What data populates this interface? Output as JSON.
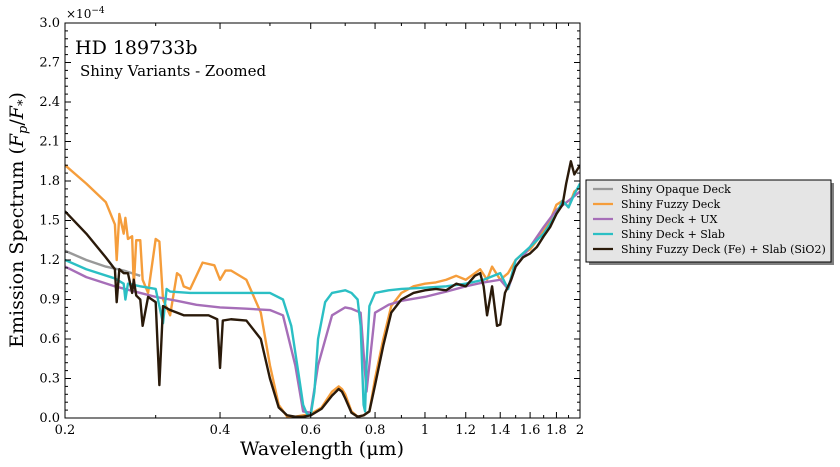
{
  "chart_data": {
    "type": "line",
    "title": "HD 189733b",
    "subtitle": "Shiny Variants - Zoomed",
    "xlabel": "Wavelength (μm)",
    "ylabel": "Emission Spectrum (F_p/F_*)",
    "ylabel_parts": {
      "main": "Emission Spectrum (",
      "F1": "F",
      "s1": "p",
      "slash": "/",
      "F2": "F",
      "s2": "*",
      "close": ")"
    },
    "y_multiplier": "×10",
    "y_multiplier_exp": "−4",
    "x_scale": "log",
    "xlim": [
      0.2,
      2.0
    ],
    "ylim": [
      0.0,
      3.0
    ],
    "x_ticks": [
      0.2,
      0.4,
      0.6,
      0.8,
      1,
      1.2,
      1.4,
      1.6,
      1.8,
      2
    ],
    "x_tick_labels": [
      "0.2",
      "0.4",
      "0.6",
      "0.8",
      "1",
      "1.2",
      "1.4",
      "1.6",
      "1.8",
      "2"
    ],
    "y_ticks": [
      0.0,
      0.3,
      0.6,
      0.9,
      1.2,
      1.5,
      1.8,
      2.1,
      2.4,
      2.7,
      3.0
    ],
    "y_tick_labels": [
      "0.0",
      "0.3",
      "0.6",
      "0.9",
      "1.2",
      "1.5",
      "1.8",
      "2.1",
      "2.4",
      "2.7",
      "3.0"
    ],
    "legend_position": "outside-right",
    "grid": false,
    "series": [
      {
        "name": "Shiny Opaque Deck",
        "color": "#999999",
        "x": [
          0.2,
          0.22,
          0.24,
          0.26,
          0.28
        ],
        "y": [
          1.27,
          1.2,
          1.15,
          1.12,
          1.08
        ]
      },
      {
        "name": "Shiny Fuzzy Deck",
        "color": "#f59d3b",
        "x": [
          0.2,
          0.22,
          0.24,
          0.25,
          0.252,
          0.255,
          0.26,
          0.262,
          0.265,
          0.27,
          0.272,
          0.275,
          0.28,
          0.283,
          0.29,
          0.3,
          0.305,
          0.31,
          0.32,
          0.33,
          0.335,
          0.34,
          0.35,
          0.37,
          0.39,
          0.4,
          0.41,
          0.42,
          0.45,
          0.48,
          0.5,
          0.52,
          0.54,
          0.56,
          0.58,
          0.6,
          0.63,
          0.66,
          0.68,
          0.69,
          0.7,
          0.72,
          0.74,
          0.76,
          0.78,
          0.8,
          0.83,
          0.86,
          0.9,
          0.95,
          1.0,
          1.05,
          1.1,
          1.15,
          1.2,
          1.25,
          1.28,
          1.32,
          1.35,
          1.4,
          1.45,
          1.5,
          1.55,
          1.6,
          1.65,
          1.7,
          1.75,
          1.8,
          1.85,
          1.9,
          1.95,
          2.0
        ],
        "y": [
          1.92,
          1.78,
          1.64,
          1.47,
          1.2,
          1.55,
          1.4,
          1.52,
          1.36,
          1.38,
          1.0,
          1.35,
          1.35,
          1.05,
          0.95,
          1.36,
          1.34,
          0.9,
          0.78,
          1.1,
          1.08,
          1.0,
          0.98,
          1.18,
          1.16,
          1.05,
          1.12,
          1.12,
          1.05,
          0.8,
          0.4,
          0.1,
          0.01,
          0.01,
          0.02,
          0.03,
          0.08,
          0.2,
          0.24,
          0.22,
          0.18,
          0.05,
          0.01,
          0.02,
          0.05,
          0.3,
          0.6,
          0.85,
          0.95,
          1.0,
          1.02,
          1.03,
          1.05,
          1.08,
          1.05,
          1.1,
          1.13,
          1.05,
          1.15,
          1.05,
          1.1,
          1.2,
          1.25,
          1.28,
          1.35,
          1.42,
          1.5,
          1.62,
          1.65,
          1.6,
          1.72,
          1.75
        ]
      },
      {
        "name": "Shiny Deck + UX",
        "color": "#a66eb8",
        "x": [
          0.2,
          0.22,
          0.25,
          0.28,
          0.3,
          0.33,
          0.36,
          0.4,
          0.45,
          0.5,
          0.53,
          0.56,
          0.58,
          0.6,
          0.62,
          0.66,
          0.7,
          0.72,
          0.75,
          0.77,
          0.8,
          0.85,
          0.9,
          1.0,
          1.1,
          1.2,
          1.3,
          1.4,
          1.45,
          1.5,
          1.6,
          1.7,
          1.8,
          1.9,
          2.0
        ],
        "y": [
          1.15,
          1.07,
          1.0,
          0.95,
          0.92,
          0.89,
          0.86,
          0.84,
          0.83,
          0.82,
          0.78,
          0.4,
          0.05,
          0.04,
          0.4,
          0.78,
          0.84,
          0.83,
          0.8,
          0.2,
          0.8,
          0.86,
          0.89,
          0.92,
          0.96,
          1.0,
          1.03,
          1.05,
          0.98,
          1.15,
          1.3,
          1.45,
          1.58,
          1.65,
          1.72
        ]
      },
      {
        "name": "Shiny Deck + Slab",
        "color": "#2bbfc4",
        "x": [
          0.2,
          0.22,
          0.25,
          0.26,
          0.262,
          0.265,
          0.28,
          0.3,
          0.31,
          0.315,
          0.32,
          0.35,
          0.4,
          0.45,
          0.5,
          0.53,
          0.55,
          0.57,
          0.58,
          0.59,
          0.6,
          0.61,
          0.62,
          0.64,
          0.66,
          0.7,
          0.72,
          0.74,
          0.75,
          0.76,
          0.765,
          0.77,
          0.78,
          0.8,
          0.85,
          0.9,
          1.0,
          1.1,
          1.2,
          1.3,
          1.4,
          1.45,
          1.5,
          1.6,
          1.7,
          1.8,
          1.85,
          1.9,
          1.95,
          2.0
        ],
        "y": [
          1.2,
          1.13,
          1.06,
          1.02,
          0.9,
          1.02,
          1.0,
          0.98,
          0.72,
          0.98,
          0.96,
          0.95,
          0.95,
          0.95,
          0.95,
          0.9,
          0.7,
          0.3,
          0.1,
          0.03,
          0.02,
          0.2,
          0.6,
          0.88,
          0.95,
          0.97,
          0.95,
          0.9,
          0.7,
          0.1,
          0.05,
          0.4,
          0.85,
          0.95,
          0.97,
          0.98,
          0.99,
          1.0,
          1.02,
          1.05,
          1.1,
          0.98,
          1.2,
          1.3,
          1.4,
          1.55,
          1.65,
          1.6,
          1.7,
          1.78
        ]
      },
      {
        "name": "Shiny Fuzzy Deck (Fe) + Slab (SiO2)",
        "color": "#2a1a0a",
        "x": [
          0.2,
          0.22,
          0.24,
          0.25,
          0.252,
          0.255,
          0.26,
          0.265,
          0.27,
          0.272,
          0.275,
          0.28,
          0.283,
          0.29,
          0.3,
          0.305,
          0.31,
          0.32,
          0.33,
          0.34,
          0.36,
          0.38,
          0.395,
          0.4,
          0.405,
          0.42,
          0.45,
          0.48,
          0.5,
          0.52,
          0.54,
          0.56,
          0.58,
          0.6,
          0.63,
          0.66,
          0.68,
          0.69,
          0.7,
          0.72,
          0.74,
          0.76,
          0.78,
          0.8,
          0.83,
          0.86,
          0.9,
          0.95,
          1.0,
          1.05,
          1.1,
          1.15,
          1.2,
          1.25,
          1.28,
          1.3,
          1.32,
          1.35,
          1.38,
          1.4,
          1.43,
          1.47,
          1.5,
          1.55,
          1.6,
          1.65,
          1.7,
          1.75,
          1.8,
          1.85,
          1.88,
          1.92,
          1.95,
          2.0
        ],
        "y": [
          1.57,
          1.4,
          1.22,
          1.13,
          0.88,
          1.13,
          1.1,
          1.1,
          0.95,
          1.05,
          0.93,
          0.9,
          0.7,
          0.92,
          0.88,
          0.25,
          0.85,
          0.82,
          0.8,
          0.78,
          0.78,
          0.78,
          0.75,
          0.38,
          0.74,
          0.75,
          0.74,
          0.6,
          0.3,
          0.08,
          0.02,
          0.01,
          0.01,
          0.02,
          0.07,
          0.17,
          0.22,
          0.2,
          0.15,
          0.04,
          0.01,
          0.02,
          0.05,
          0.25,
          0.55,
          0.8,
          0.9,
          0.95,
          0.97,
          0.98,
          0.97,
          1.02,
          1.0,
          1.08,
          1.1,
          1.0,
          0.78,
          1.0,
          0.7,
          0.71,
          0.95,
          1.05,
          1.15,
          1.22,
          1.25,
          1.3,
          1.38,
          1.45,
          1.55,
          1.62,
          1.78,
          1.95,
          1.85,
          1.92
        ]
      }
    ]
  }
}
